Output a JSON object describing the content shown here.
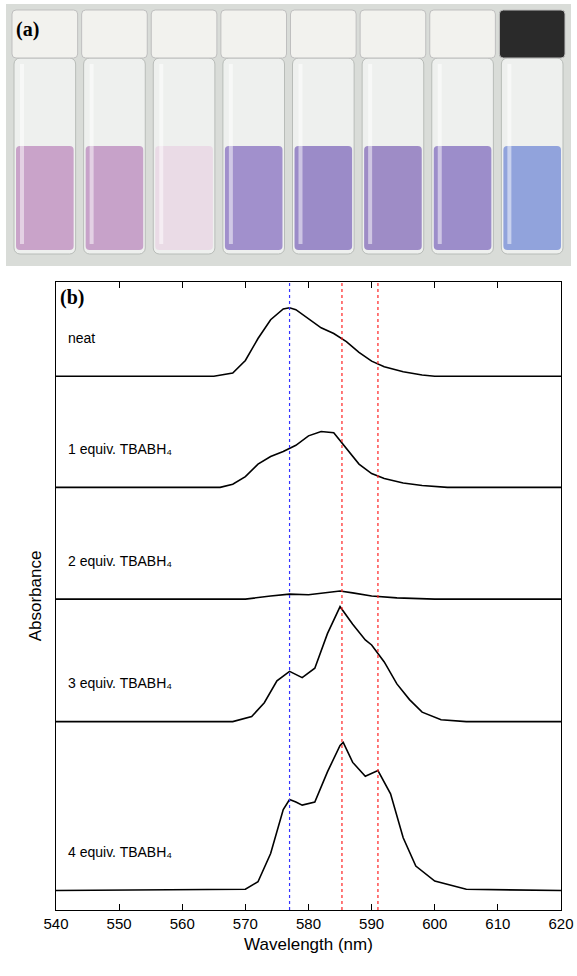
{
  "photo": {
    "label": "(a)",
    "vial_colors": [
      "#c9a3c9",
      "#c7a2c9",
      "#eadbe6",
      "#a190cc",
      "#9b8bc8",
      "#9e8cc6",
      "#9c8dca",
      "#91a3dc"
    ],
    "cap_colors": [
      "#f2f2ee",
      "#f2f2ee",
      "#f2f2ee",
      "#f2f2ee",
      "#f2f2ee",
      "#f2f2ee",
      "#f2f2ee",
      "#2a2a2a"
    ]
  },
  "chart_data": {
    "type": "line",
    "panel_label": "(b)",
    "x_label": "Wavelength (nm)",
    "y_label": "Absorbance",
    "xlim": [
      540,
      620
    ],
    "xticks": [
      540,
      550,
      560,
      570,
      580,
      590,
      600,
      610,
      620
    ],
    "ylim": [
      0,
      10
    ],
    "yticks": [],
    "tick_labels": "x",
    "grid": false,
    "series": [
      {
        "name": "neat",
        "color": "#000000",
        "x": [
          540,
          565,
          568,
          570,
          572,
          574,
          576,
          577,
          578,
          580,
          582,
          584,
          586,
          588,
          590,
          592,
          595,
          598,
          600,
          620
        ],
        "values": [
          8.5,
          8.5,
          8.55,
          8.75,
          9.1,
          9.4,
          9.57,
          9.59,
          9.56,
          9.42,
          9.27,
          9.18,
          9.05,
          8.88,
          8.74,
          8.65,
          8.57,
          8.52,
          8.5,
          8.5
        ]
      },
      {
        "name": "1 equiv. TBABH₄",
        "color": "#000000",
        "x": [
          540,
          566,
          568,
          570,
          572,
          574,
          576,
          578,
          580,
          582,
          584,
          586,
          588,
          590,
          592,
          595,
          598,
          602,
          620
        ],
        "values": [
          6.73,
          6.73,
          6.78,
          6.9,
          7.1,
          7.22,
          7.3,
          7.4,
          7.55,
          7.62,
          7.6,
          7.35,
          7.1,
          6.95,
          6.87,
          6.8,
          6.76,
          6.73,
          6.73
        ]
      },
      {
        "name": "2 equiv. TBABH₄",
        "color": "#000000",
        "x": [
          540,
          570,
          574,
          577,
          580,
          583,
          585,
          587,
          590,
          594,
          600,
          620
        ],
        "values": [
          4.95,
          4.95,
          5.0,
          5.03,
          5.02,
          5.06,
          5.08,
          5.05,
          5.0,
          4.97,
          4.95,
          4.95
        ]
      },
      {
        "name": "3 equiv. TBABH₄",
        "color": "#000000",
        "x": [
          540,
          568,
          571,
          573,
          575,
          577,
          579,
          581,
          583,
          585,
          587,
          589,
          590,
          592,
          594,
          596,
          598,
          601,
          605,
          620
        ],
        "values": [
          3.0,
          3.0,
          3.08,
          3.3,
          3.65,
          3.8,
          3.7,
          3.85,
          4.4,
          4.83,
          4.55,
          4.3,
          4.22,
          3.95,
          3.6,
          3.35,
          3.15,
          3.03,
          3.0,
          3.0
        ]
      },
      {
        "name": "4 equiv. TBABH₄",
        "color": "#000000",
        "x": [
          540,
          570,
          572,
          574,
          576,
          577,
          578,
          579,
          581,
          583,
          585,
          585.5,
          587,
          589,
          591,
          593,
          595,
          597,
          600,
          605,
          620
        ],
        "values": [
          0.31,
          0.33,
          0.45,
          0.9,
          1.6,
          1.76,
          1.72,
          1.67,
          1.72,
          2.2,
          2.62,
          2.67,
          2.35,
          2.13,
          2.22,
          1.85,
          1.15,
          0.7,
          0.46,
          0.33,
          0.31
        ]
      }
    ],
    "reference_lines": [
      {
        "x": 577,
        "color": "#3333ff",
        "line_style": "dot"
      },
      {
        "x": 585.3,
        "color": "#ff2222",
        "line_style": "dot"
      },
      {
        "x": 591,
        "color": "#ff2222",
        "line_style": "dot"
      }
    ]
  }
}
